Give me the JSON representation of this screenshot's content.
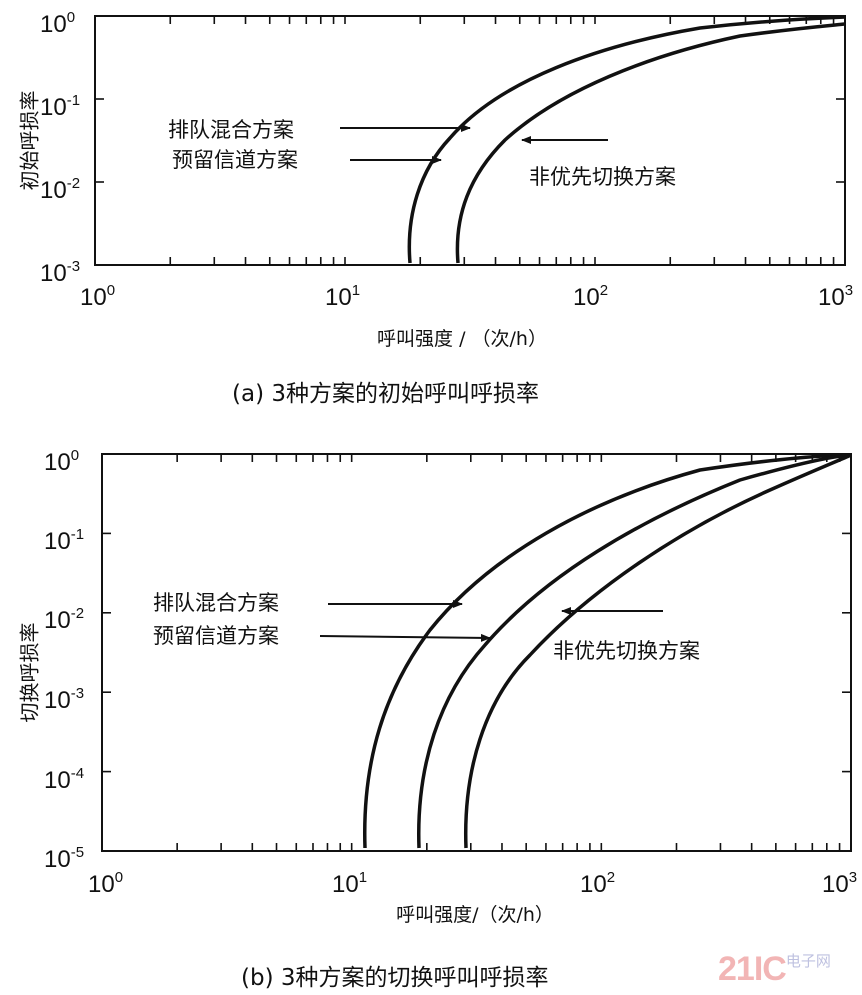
{
  "chart_data": [
    {
      "type": "line",
      "title": "(a)  3种方案的初始呼叫呼损率",
      "xlabel": "呼叫强度 / （次/h）",
      "ylabel": "初始呼损率",
      "xscale": "log",
      "yscale": "log",
      "xlim": [
        1,
        1000
      ],
      "ylim": [
        0.001,
        1
      ],
      "x_tick_labels": [
        "10^0",
        "10^1",
        "10^2",
        "10^3"
      ],
      "y_tick_labels": [
        "10^0",
        "10^-1",
        "10^-2",
        "10^-3"
      ],
      "grid": false,
      "legend": "inline arrow annotations",
      "annotations": [
        "排队混合方案",
        "预留信道方案",
        "非优先切换方案"
      ],
      "series": [
        {
          "name": "排队混合方案 / 预留信道方案 (overlapping)",
          "x": [
            18,
            20,
            25,
            32,
            50,
            100,
            200,
            500,
            1000
          ],
          "y": [
            0.001,
            0.004,
            0.015,
            0.045,
            0.13,
            0.35,
            0.6,
            0.88,
            0.97
          ]
        },
        {
          "name": "非优先切换方案",
          "x": [
            28,
            30,
            35,
            45,
            70,
            100,
            200,
            500,
            1000
          ],
          "y": [
            0.001,
            0.003,
            0.008,
            0.025,
            0.08,
            0.17,
            0.38,
            0.68,
            0.82
          ]
        }
      ]
    },
    {
      "type": "line",
      "title": "(b)  3种方案的切换呼叫呼损率",
      "xlabel": "呼叫强度/（次/h）",
      "ylabel": "切换呼损率",
      "xscale": "log",
      "yscale": "log",
      "xlim": [
        1,
        1000
      ],
      "ylim": [
        1e-05,
        1
      ],
      "x_tick_labels": [
        "10^0",
        "10^1",
        "10^2",
        "10^3"
      ],
      "y_tick_labels": [
        "10^0",
        "10^-1",
        "10^-2",
        "10^-3",
        "10^-4",
        "10^-5"
      ],
      "grid": false,
      "legend": "inline arrow annotations",
      "annotations": [
        "排队混合方案",
        "预留信道方案",
        "非优先切换方案"
      ],
      "series": [
        {
          "name": "排队混合方案",
          "x": [
            11.3,
            12,
            14,
            18,
            25,
            40,
            70,
            150,
            400,
            1000
          ],
          "y": [
            1e-05,
            8e-05,
            0.0005,
            0.002,
            0.008,
            0.025,
            0.07,
            0.2,
            0.55,
            0.98
          ]
        },
        {
          "name": "预留信道方案",
          "x": [
            18.4,
            19.5,
            22,
            28,
            40,
            60,
            100,
            200,
            500,
            1000
          ],
          "y": [
            1e-05,
            6e-05,
            0.0003,
            0.0012,
            0.005,
            0.015,
            0.045,
            0.15,
            0.5,
            0.97
          ]
        },
        {
          "name": "非优先切换方案",
          "x": [
            28.7,
            30,
            35,
            45,
            65,
            100,
            150,
            300,
            600,
            1000
          ],
          "y": [
            1e-05,
            5e-05,
            0.0004,
            0.0015,
            0.006,
            0.02,
            0.05,
            0.18,
            0.5,
            0.95
          ]
        }
      ]
    }
  ],
  "top_chart": {
    "y_axis_title": "初始呼损率",
    "x_axis_title": "呼叫强度 / （次/h）",
    "caption": "(a)  3种方案的初始呼叫呼损率",
    "x_ticks": [
      {
        "base": "10",
        "exp": "0"
      },
      {
        "base": "10",
        "exp": "1"
      },
      {
        "base": "10",
        "exp": "2"
      },
      {
        "base": "10",
        "exp": "3"
      }
    ],
    "y_ticks": [
      {
        "base": "10",
        "exp": "0"
      },
      {
        "base": "10",
        "exp": "-1"
      },
      {
        "base": "10",
        "exp": "-2"
      },
      {
        "base": "10",
        "exp": "-3"
      }
    ],
    "annotation_queue": "排队混合方案",
    "annotation_reserved": "预留信道方案",
    "annotation_nonpriority": "非优先切换方案"
  },
  "bottom_chart": {
    "y_axis_title": "切换呼损率",
    "x_axis_title": "呼叫强度/（次/h）",
    "caption": "(b)  3种方案的切换呼叫呼损率",
    "x_ticks": [
      {
        "base": "10",
        "exp": "0"
      },
      {
        "base": "10",
        "exp": "1"
      },
      {
        "base": "10",
        "exp": "2"
      },
      {
        "base": "10",
        "exp": "3"
      }
    ],
    "y_ticks": [
      {
        "base": "10",
        "exp": "0"
      },
      {
        "base": "10",
        "exp": "-1"
      },
      {
        "base": "10",
        "exp": "-2"
      },
      {
        "base": "10",
        "exp": "-3"
      },
      {
        "base": "10",
        "exp": "-4"
      },
      {
        "base": "10",
        "exp": "-5"
      }
    ],
    "annotation_queue": "排队混合方案",
    "annotation_reserved": "预留信道方案",
    "annotation_nonpriority": "非优先切换方案"
  },
  "watermark": {
    "number": "21IC",
    "text": "电子网"
  }
}
